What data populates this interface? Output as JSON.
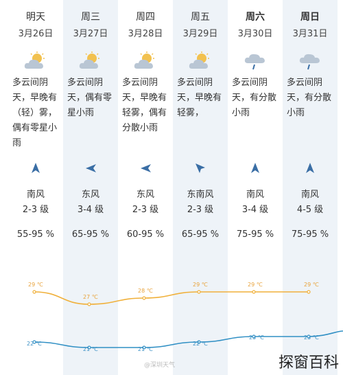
{
  "days": [
    {
      "day": "明天",
      "date": "3月26日",
      "icon": "partly-cloudy-icon",
      "desc": "多云间阴天，早晚有（轻）雾，偶有零星小雨",
      "wind": "南风",
      "level": "2-3 级",
      "humidity": "55-95 %",
      "high": "29 ℃",
      "low": "22 ℃",
      "bold": false,
      "shade": false
    },
    {
      "day": "周三",
      "date": "3月27日",
      "icon": "partly-cloudy-icon",
      "desc": "多云间阴天，偶有零星小雨",
      "wind": "东风",
      "level": "3-4 级",
      "humidity": "65-95 %",
      "high": "27 ℃",
      "low": "21 ℃",
      "bold": false,
      "shade": true
    },
    {
      "day": "周四",
      "date": "3月28日",
      "icon": "partly-cloudy-icon",
      "desc": "多云间阴天，早晚有轻雾，偶有分散小雨",
      "wind": "东风",
      "level": "2-3 级",
      "humidity": "60-95 %",
      "high": "28 ℃",
      "low": "21 ℃",
      "bold": false,
      "shade": false
    },
    {
      "day": "周五",
      "date": "3月29日",
      "icon": "partly-cloudy-icon",
      "desc": "多云间阴天，早晚有轻雾，",
      "wind": "东南风",
      "level": "2-3 级",
      "humidity": "65-95 %",
      "high": "29 ℃",
      "low": "22 ℃",
      "bold": false,
      "shade": true
    },
    {
      "day": "周六",
      "date": "3月30日",
      "icon": "rain-cloud-icon",
      "desc": "多云间阴天，有分散小雨",
      "wind": "南风",
      "level": "3-4 级",
      "humidity": "75-95 %",
      "high": "29 ℃",
      "low": "23 ℃",
      "bold": true,
      "shade": false
    },
    {
      "day": "周日",
      "date": "3月31日",
      "icon": "rain-cloud-icon",
      "desc": "多云间阴天，有分散小雨",
      "wind": "南风",
      "level": "4-5 级",
      "humidity": "75-95 %",
      "high": "29 ℃",
      "low": "23 ℃",
      "bold": true,
      "shade": true
    }
  ],
  "high_temps": [
    29,
    27,
    28,
    29,
    29,
    29
  ],
  "low_temps": [
    22,
    21,
    21,
    22,
    23,
    23
  ],
  "colors": {
    "high_line": "#f0b03a",
    "low_line": "#2f8fc4",
    "high_label": "#e8a23a",
    "low_label": "#3a8fc4",
    "shade": "#eef3f8",
    "arrow": "#3a6ea5"
  },
  "watermarks": {
    "weibo": "@深圳天气",
    "brand": "探窗百科"
  }
}
